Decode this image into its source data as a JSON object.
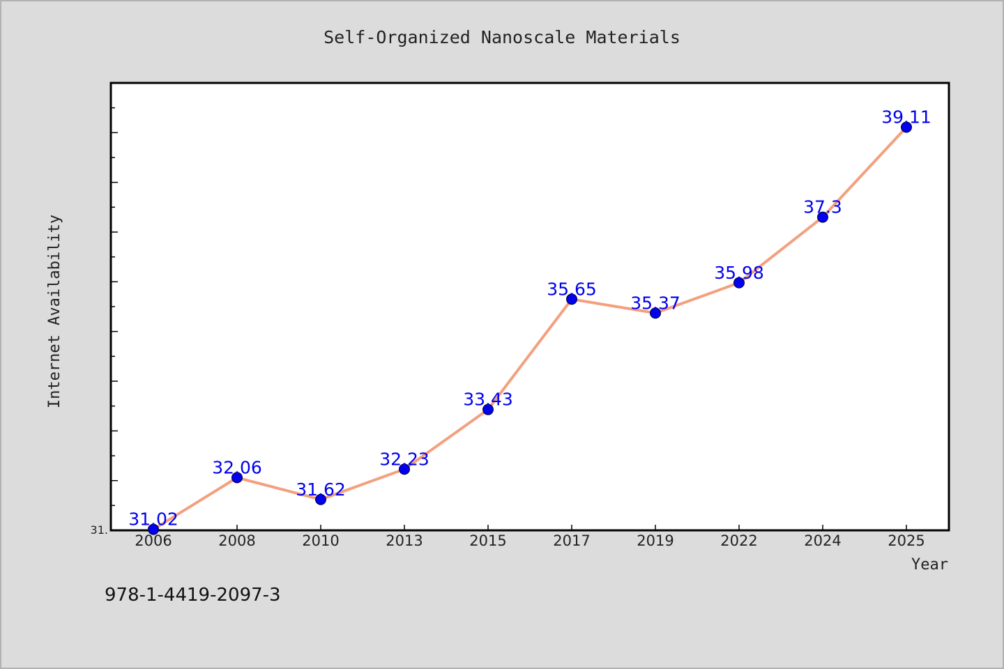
{
  "chart_data": {
    "type": "line",
    "title": "Self-Organized Nanoscale Materials",
    "xlabel": "Year",
    "ylabel": "Internet Availability",
    "categories": [
      "2006",
      "2008",
      "2010",
      "2013",
      "2015",
      "2017",
      "2019",
      "2022",
      "2024",
      "2025"
    ],
    "values": [
      31.02,
      32.06,
      31.62,
      32.23,
      33.43,
      35.65,
      35.37,
      35.98,
      37.3,
      39.11
    ],
    "data_labels": [
      "31.02",
      "32.06",
      "31.62",
      "32.23",
      "33.43",
      "35.65",
      "35.37",
      "35.98",
      "37.3",
      "39.11"
    ],
    "y_tick_label": "31.",
    "ylim": [
      31.0,
      40.0
    ],
    "grid": false,
    "line_color": "#f4a07f",
    "marker_color": "#0000ee",
    "label_color": "#0000ee"
  },
  "footer": {
    "isbn": "978-1-4419-2097-3"
  }
}
